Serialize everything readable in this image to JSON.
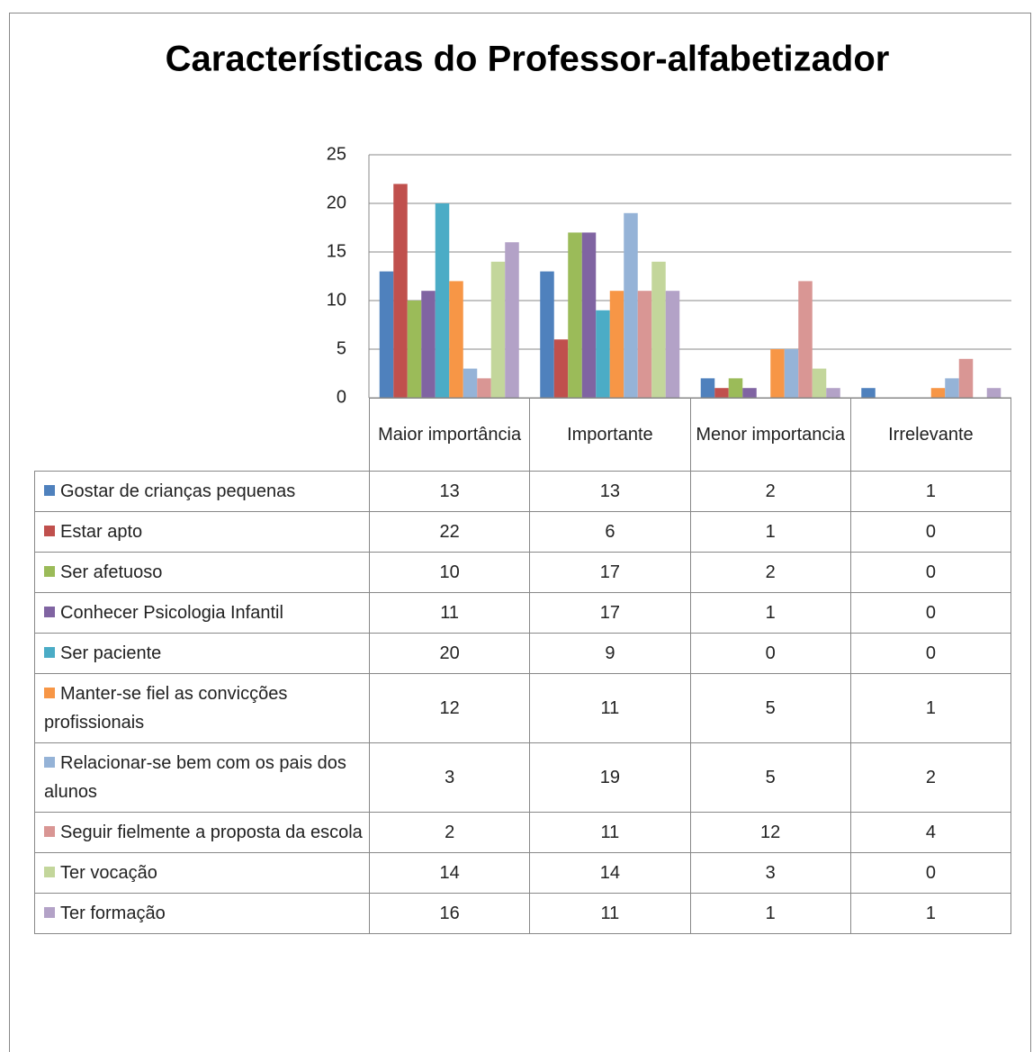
{
  "chart_data": {
    "type": "bar",
    "title": "Características do Professor-alfabetizador",
    "categories": [
      "Maior importância",
      "Importante",
      "Menor importancia",
      "Irrelevante"
    ],
    "series": [
      {
        "name": "Gostar de crianças pequenas",
        "color": "#4F81BD",
        "values": [
          13,
          13,
          2,
          1
        ]
      },
      {
        "name": "Estar apto",
        "color": "#C0504D",
        "values": [
          22,
          6,
          1,
          0
        ]
      },
      {
        "name": "Ser afetuoso",
        "color": "#9BBB59",
        "values": [
          10,
          17,
          2,
          0
        ]
      },
      {
        "name": "Conhecer Psicologia Infantil",
        "color": "#8064A2",
        "values": [
          11,
          17,
          1,
          0
        ]
      },
      {
        "name": "Ser paciente",
        "color": "#4BACC6",
        "values": [
          20,
          9,
          0,
          0
        ]
      },
      {
        "name": "Manter-se fiel as convicções profissionais",
        "color": "#F79646",
        "values": [
          12,
          11,
          5,
          1
        ]
      },
      {
        "name": "Relacionar-se bem com os pais dos alunos",
        "color": "#95B3D7",
        "values": [
          3,
          19,
          5,
          2
        ]
      },
      {
        "name": "Seguir fielmente a proposta da escola",
        "color": "#D99694",
        "values": [
          2,
          11,
          12,
          4
        ]
      },
      {
        "name": "Ter vocação",
        "color": "#C3D69B",
        "values": [
          14,
          14,
          3,
          0
        ]
      },
      {
        "name": "Ter formação",
        "color": "#B3A2C7",
        "values": [
          16,
          11,
          1,
          1
        ]
      }
    ],
    "ylim": [
      0,
      25
    ],
    "yticks": [
      0,
      5,
      10,
      15,
      20,
      25
    ],
    "grid": true
  }
}
